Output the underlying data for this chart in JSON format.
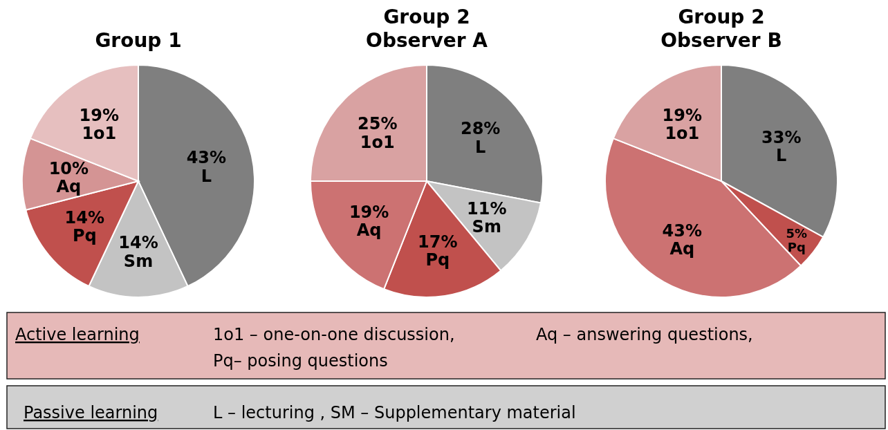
{
  "chart_data": [
    {
      "type": "pie",
      "title": "Group 1",
      "categories": [
        "L",
        "Sm",
        "Pq",
        "Aq",
        "1o1"
      ],
      "values": [
        43,
        14,
        14,
        10,
        19
      ],
      "value_labels": [
        "43%",
        "14%",
        "14%",
        "10%",
        "19%"
      ],
      "colors": [
        "#7f7f7f",
        "#c3c3c3",
        "#c0504d",
        "#d49494",
        "#e6bfbf"
      ]
    },
    {
      "type": "pie",
      "title": "Group 2\nObserver A",
      "categories": [
        "L",
        "Sm",
        "Pq",
        "Aq",
        "1o1"
      ],
      "values": [
        28,
        11,
        17,
        19,
        25
      ],
      "value_labels": [
        "28%",
        "11%",
        "17%",
        "19%",
        "25%"
      ],
      "colors": [
        "#7f7f7f",
        "#c3c3c3",
        "#c0504d",
        "#cc7272",
        "#d9a2a2"
      ]
    },
    {
      "type": "pie",
      "title": "Group 2\nObserver B",
      "categories": [
        "L",
        "Pq",
        "Aq",
        "1o1"
      ],
      "values": [
        33,
        5,
        43,
        19
      ],
      "value_labels": [
        "33%",
        "5%",
        "43%",
        "19%"
      ],
      "colors": [
        "#7f7f7f",
        "#c0504d",
        "#cc7272",
        "#d9a2a2"
      ]
    },
    {
      "type": "other",
      "annotations": [
        "Active learning",
        "1o1 – one-on-one discussion,",
        "Aq – answering questions,",
        "Pq– posing questions",
        "Passive learning",
        "L – lecturing , SM  – Supplementary material"
      ]
    }
  ]
}
